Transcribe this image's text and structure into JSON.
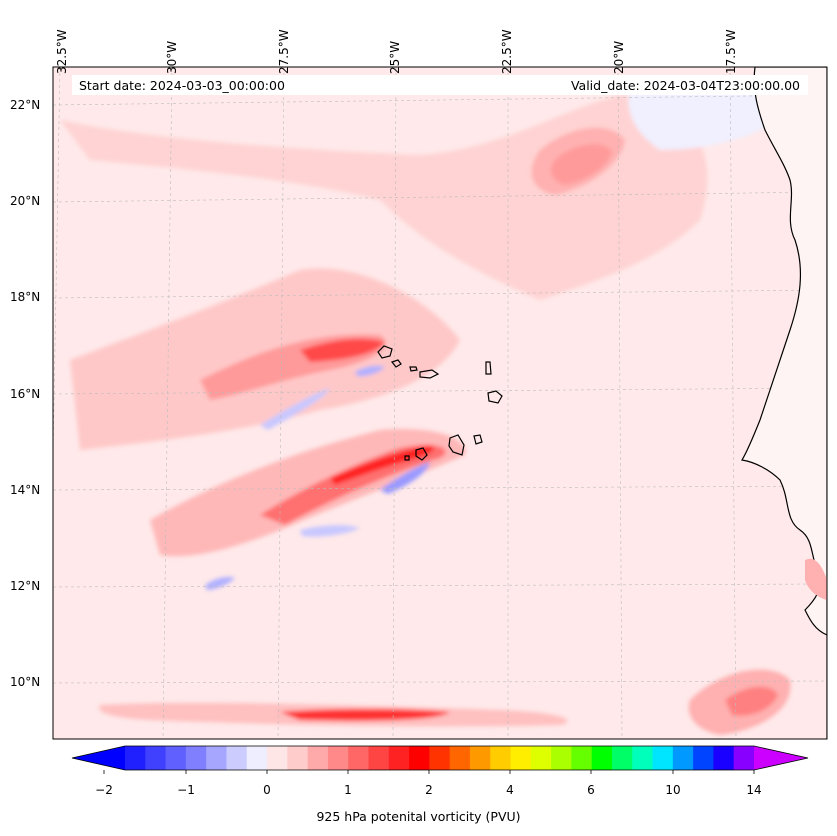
{
  "map": {
    "start_date": "Start date: 2024-03-03_00:00:00",
    "valid_date": "Valid_date: 2024-03-04T23:00:00.00",
    "lon_labels": [
      "32.5°W",
      "30°W",
      "27.5°W",
      "25°W",
      "22.5°W",
      "20°W",
      "17.5°W"
    ],
    "lat_labels": [
      "22°N",
      "20°N",
      "18°N",
      "16°N",
      "14°N",
      "12°N",
      "10°N"
    ],
    "variable": "925 hPa potential vorticity",
    "units": "PVU",
    "colors": {
      "background_low": "#ffe6e6",
      "low_pos": "#ffc8c8",
      "mid_pos": "#ff9a9a",
      "high_pos": "#ff5050",
      "max_pos": "#ff1a1a",
      "neg_light": "#eeeeff",
      "neg_mid": "#c8c8ff",
      "neg_strong": "#9a9aff",
      "coast": "#000000"
    }
  },
  "colorbar": {
    "title": "925 hPa potenital vorticity (PVU)",
    "tick_labels": [
      "−2",
      "−1",
      "0",
      "1",
      "2",
      "4",
      "6",
      "10",
      "14"
    ],
    "colors": [
      "#0000ff",
      "#2020ff",
      "#4040ff",
      "#6060ff",
      "#8080ff",
      "#a6a6ff",
      "#ccccff",
      "#eeeeff",
      "#ffe6e6",
      "#ffcccc",
      "#ffaaaa",
      "#ff8888",
      "#ff6666",
      "#ff4444",
      "#ff2222",
      "#ff0000",
      "#ff3300",
      "#ff6600",
      "#ff9900",
      "#ffcc00",
      "#ffee00",
      "#ddff00",
      "#aaff00",
      "#66ff00",
      "#00ff00",
      "#00ff66",
      "#00ffbb",
      "#00e5ff",
      "#0099ff",
      "#0044ff",
      "#1a00ff",
      "#8800ff",
      "#cc00ff"
    ]
  }
}
